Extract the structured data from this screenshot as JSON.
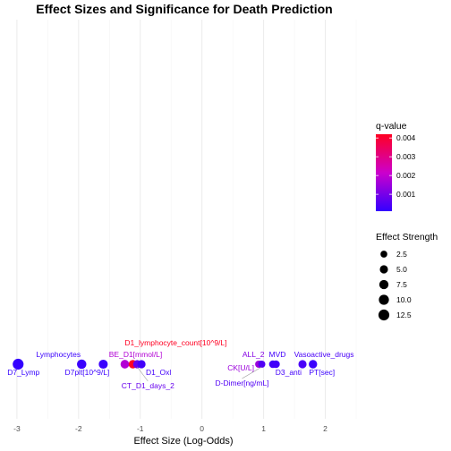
{
  "chart_data": {
    "type": "scatter",
    "title": "Effect Sizes and Significance for Death Prediction",
    "xlabel": "Effect Size (Log-Odds)",
    "ylabel": "",
    "xlim": [
      -3.1,
      2.5
    ],
    "x_ticks": [
      -3,
      -2,
      -1,
      0,
      1,
      2
    ],
    "grid": true,
    "points": [
      {
        "label": "D7_Lymp",
        "x": -2.98,
        "q": 0.0001,
        "strength": 12.5
      },
      {
        "label": "Lymphocytes",
        "x": -1.95,
        "q": 0.0002,
        "strength": 8
      },
      {
        "label": "D7plt[10^9/L]",
        "x": -1.6,
        "q": 0.0002,
        "strength": 7
      },
      {
        "label": "BE_D1[mmol/L]",
        "x": -1.25,
        "q": 0.0018,
        "strength": 6
      },
      {
        "label": "D1_lymphocyte_count[10^9/L]",
        "x": -1.12,
        "q": 0.0042,
        "strength": 5.5
      },
      {
        "label": "CT_D1_days_2",
        "x": -1.05,
        "q": 0.0008,
        "strength": 5
      },
      {
        "label": "D1_Oxl",
        "x": -0.98,
        "q": 0.0003,
        "strength": 5
      },
      {
        "label": "ALL_2",
        "x": 0.95,
        "q": 0.0012,
        "strength": 3
      },
      {
        "label": "CK[U/L]",
        "x": 0.92,
        "q": 0.0015,
        "strength": 3
      },
      {
        "label": "D-Dimer[ng/mL]",
        "x": 0.97,
        "q": 0.0005,
        "strength": 3
      },
      {
        "label": "MVD",
        "x": 1.15,
        "q": 0.0003,
        "strength": 4
      },
      {
        "label": "D3_anti",
        "x": 1.2,
        "q": 0.0003,
        "strength": 4
      },
      {
        "label": "Vasoactive_drugs",
        "x": 1.63,
        "q": 0.0004,
        "strength": 5
      },
      {
        "label": "PT[sec]",
        "x": 1.8,
        "q": 0.0002,
        "strength": 5.5
      }
    ],
    "color_legend": {
      "title": "q-value",
      "range": [
        0.0001,
        0.0042
      ],
      "ticks": [
        0.001,
        0.002,
        0.003,
        0.004
      ],
      "tick_labels": [
        "0.001",
        "0.002",
        "0.003",
        "0.004"
      ],
      "low_color": "#3300ff",
      "mid_color": "#cc00cc",
      "high_color": "#ff0022"
    },
    "size_legend": {
      "title": "Effect Strength",
      "values": [
        2.5,
        5.0,
        7.5,
        10.0,
        12.5
      ],
      "labels": [
        "2.5",
        "5.0",
        "7.5",
        "10.0",
        "12.5"
      ]
    },
    "legend_position": "right"
  }
}
